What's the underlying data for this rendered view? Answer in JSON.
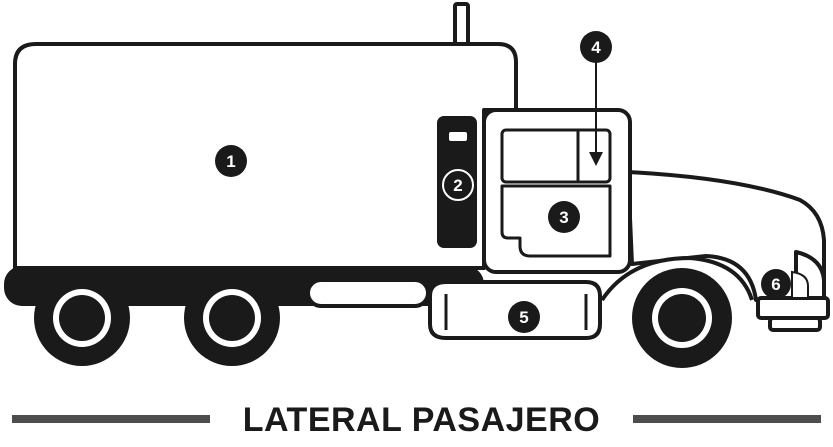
{
  "diagram": {
    "caption": "LATERAL PASAJERO",
    "colors": {
      "ink": "#1a1a1a",
      "paper": "#ffffff",
      "caption_bar": "#4d4d4d"
    },
    "markers": [
      {
        "id": "marker-1",
        "label": "1"
      },
      {
        "id": "marker-2",
        "label": "2"
      },
      {
        "id": "marker-3",
        "label": "3"
      },
      {
        "id": "marker-4",
        "label": "4"
      },
      {
        "id": "marker-5",
        "label": "5"
      },
      {
        "id": "marker-6",
        "label": "6"
      }
    ]
  }
}
